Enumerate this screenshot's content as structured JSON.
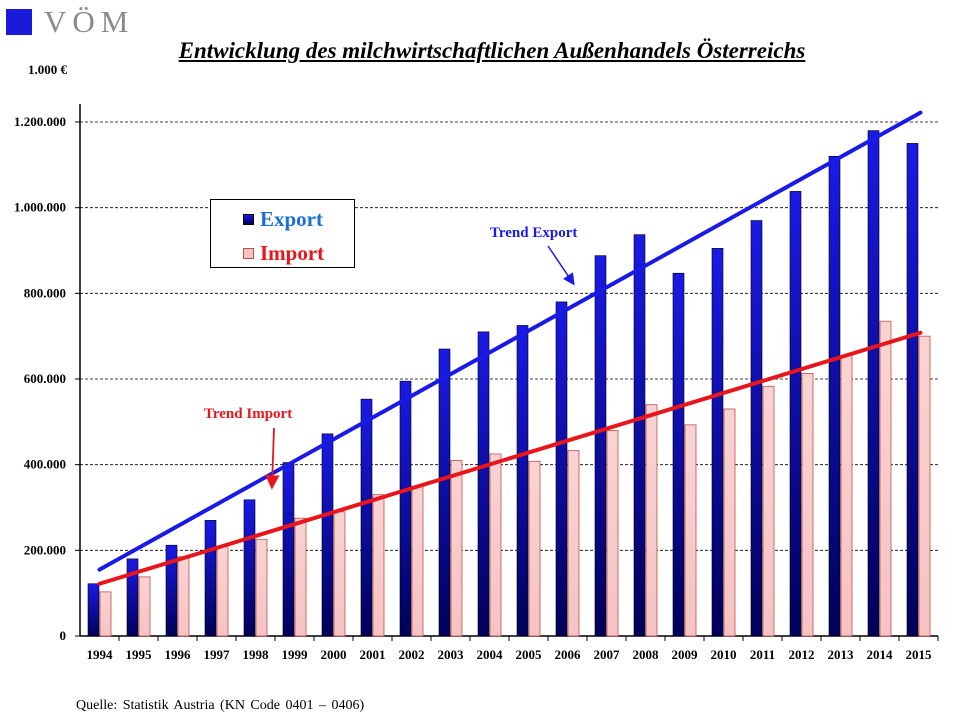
{
  "logo": {
    "text": "VÖM"
  },
  "title": "Entwicklung des milchwirtschaftlichen Außenhandels Österreichs",
  "unit_label": "1.000 €",
  "source": "Quelle:  Statistik  Austria  (KN Code 0401 – 0406)",
  "colors": {
    "export": "#1a1ae6",
    "export_dark": "#00005a",
    "import": "#f6c3c3",
    "import_border": "#c0504d",
    "trend_export": "#1a1ae6",
    "trend_import": "#e8161c",
    "annotation_export": "#1a1ae6",
    "annotation_import": "#e8161c"
  },
  "chart_data": {
    "type": "bar",
    "categories": [
      "1994",
      "1995",
      "1996",
      "1997",
      "1998",
      "1999",
      "2000",
      "2001",
      "2002",
      "2003",
      "2004",
      "2005",
      "2006",
      "2007",
      "2008",
      "2009",
      "2010",
      "2011",
      "2012",
      "2013",
      "2014",
      "2015"
    ],
    "series": [
      {
        "name": "Export",
        "values": [
          122000,
          180000,
          212000,
          270000,
          318000,
          405000,
          472000,
          553000,
          595000,
          670000,
          710000,
          725000,
          780000,
          888000,
          937000,
          847000,
          905000,
          970000,
          1038000,
          1120000,
          1180000,
          1150000
        ]
      },
      {
        "name": "Import",
        "values": [
          103000,
          138000,
          185000,
          210000,
          225000,
          275000,
          290000,
          330000,
          350000,
          410000,
          425000,
          408000,
          433000,
          480000,
          540000,
          493000,
          530000,
          583000,
          613000,
          655000,
          735000,
          700000
        ]
      }
    ],
    "trendlines": [
      {
        "label": "Trend Export",
        "start": {
          "x": "1994",
          "y": 155000
        },
        "end": {
          "x": "2015",
          "y": 1222000
        }
      },
      {
        "label": "Trend Import",
        "start": {
          "x": "1994",
          "y": 122000
        },
        "end": {
          "x": "2015",
          "y": 708000
        }
      }
    ],
    "y_ticks": [
      "0",
      "200.000",
      "400.000",
      "600.000",
      "800.000",
      "1.000.000",
      "1.200.000"
    ],
    "ylim": [
      0,
      1230000
    ],
    "grid": true,
    "legend_position": "top-left"
  }
}
